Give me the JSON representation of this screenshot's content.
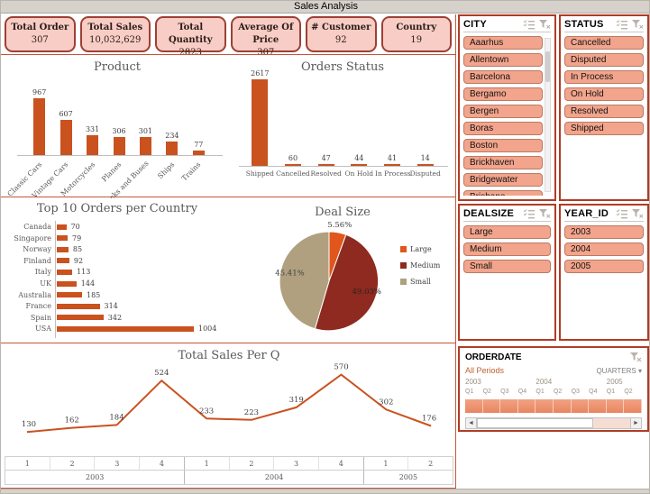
{
  "window_title": "Sales Analysis",
  "kpis": [
    {
      "label": "Total Order",
      "value": "307"
    },
    {
      "label": "Total Sales",
      "value": "10,032,629"
    },
    {
      "label": "Total Quantity",
      "value": "2823"
    },
    {
      "label": "Average Of Price",
      "value": "307"
    },
    {
      "label": "# Customer",
      "value": "92"
    },
    {
      "label": "Country",
      "value": "19"
    }
  ],
  "chart_data": [
    {
      "type": "bar",
      "title": "Product",
      "orientation": "vertical",
      "categories": [
        "Classic Cars",
        "Vintage Cars",
        "Motorcycles",
        "Planes",
        "Trucks and Buses",
        "Ships",
        "Trains"
      ],
      "values": [
        967,
        607,
        331,
        306,
        301,
        234,
        77
      ],
      "bar_color": "#c9521f",
      "data_labels": true,
      "grid": false
    },
    {
      "type": "bar",
      "title": "Orders Status",
      "orientation": "vertical",
      "categories": [
        "Shipped",
        "Cancelled",
        "Resolved",
        "On Hold",
        "In Process",
        "Disputed"
      ],
      "values": [
        2617,
        60,
        47,
        44,
        41,
        14
      ],
      "bar_color": "#c9521f",
      "data_labels": true,
      "grid": false
    },
    {
      "type": "bar",
      "title": "Top 10 Orders per Country",
      "orientation": "horizontal",
      "categories": [
        "Canada",
        "Singapore",
        "Norway",
        "Finland",
        "Italy",
        "UK",
        "Australia",
        "France",
        "Spain",
        "USA"
      ],
      "values": [
        70,
        79,
        85,
        92,
        113,
        144,
        185,
        314,
        342,
        1004
      ],
      "bar_color": "#c9521f",
      "data_labels": true,
      "grid": false
    },
    {
      "type": "pie",
      "title": "Deal Size",
      "labels": [
        "Large",
        "Medium",
        "Small"
      ],
      "values": [
        5.56,
        49.03,
        45.41
      ],
      "value_labels": [
        "5.56%",
        "49.03%",
        "45.41%"
      ],
      "colors": [
        "#e0561c",
        "#8e2a20",
        "#b0a07f"
      ],
      "legend_position": "right"
    },
    {
      "type": "line",
      "title": "Total Sales Per Q",
      "x_quarters": [
        "1",
        "2",
        "3",
        "4",
        "1",
        "2",
        "3",
        "4",
        "1",
        "2"
      ],
      "year_groups": [
        {
          "label": "2003",
          "span": 4
        },
        {
          "label": "2004",
          "span": 4
        },
        {
          "label": "2005",
          "span": 2
        }
      ],
      "values": [
        130,
        162,
        184,
        524,
        233,
        223,
        319,
        570,
        302,
        176
      ],
      "line_color": "#c9521f",
      "data_labels": true,
      "ylim": [
        0,
        650
      ]
    }
  ],
  "slicers": [
    {
      "title": "CITY",
      "items": [
        "Aaarhus",
        "Allentown",
        "Barcelona",
        "Bergamo",
        "Bergen",
        "Boras",
        "Boston",
        "Brickhaven",
        "Bridgewater",
        "Brisbane",
        "Bruxelles"
      ],
      "has_scrollbar": true
    },
    {
      "title": "STATUS",
      "items": [
        "Cancelled",
        "Disputed",
        "In Process",
        "On Hold",
        "Resolved",
        "Shipped"
      ],
      "has_scrollbar": false
    },
    {
      "title": "DEALSIZE",
      "items": [
        "Large",
        "Medium",
        "Small"
      ],
      "has_scrollbar": false
    },
    {
      "title": "YEAR_ID",
      "items": [
        "2003",
        "2004",
        "2005"
      ],
      "has_scrollbar": false
    }
  ],
  "timeline": {
    "title": "ORDERDATE",
    "period_label": "All Periods",
    "granularity": "QUARTERS",
    "years": [
      {
        "label": "2003",
        "quarters": [
          "Q1",
          "Q2",
          "Q3",
          "Q4"
        ]
      },
      {
        "label": "2004",
        "quarters": [
          "Q1",
          "Q2",
          "Q3",
          "Q4"
        ]
      },
      {
        "label": "2005",
        "quarters": [
          "Q1",
          "Q2"
        ]
      }
    ]
  },
  "colors": {
    "accent_bar": "#c9521f",
    "kpi_fill": "#f7cdc6",
    "kpi_border": "#9e4034",
    "slicer_item_fill": "#f2a48c",
    "slicer_panel_border": "#b03c26",
    "pie_large": "#e0561c",
    "pie_medium": "#8e2a20",
    "pie_small": "#b0a07f",
    "timeline_band": "#ee9274",
    "titlebar_bg": "#d6d2cb"
  }
}
